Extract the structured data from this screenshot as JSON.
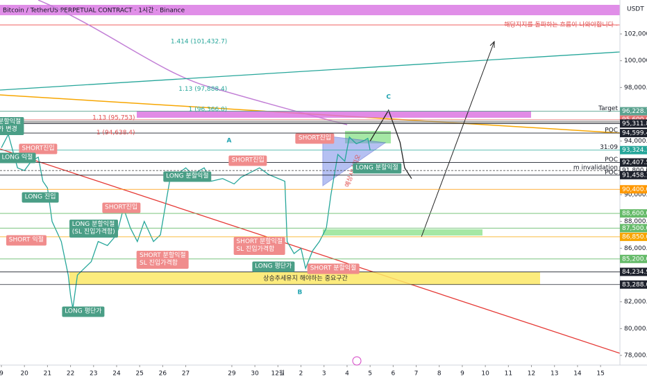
{
  "chart_data": {
    "type": "line",
    "title": "Bitcoin / TetherUS PERPETUAL CONTRACT · 1시간 · Binance",
    "currency": "USDT",
    "resistance_note": "해당지지를 돌파하는 흐름이 나와야합니다 -",
    "zone_label": "상승추세유지 해야하는 중요구간",
    "scenario_label": "예상시나리오",
    "xlim": [
      -0.06,
      26.84
    ],
    "ylim": [
      77276,
      104534
    ],
    "grid": false,
    "xticks": [
      {
        "value": 0,
        "label": "9"
      },
      {
        "value": 1,
        "label": "20"
      },
      {
        "value": 2,
        "label": "21"
      },
      {
        "value": 3,
        "label": "22"
      },
      {
        "value": 4,
        "label": "23"
      },
      {
        "value": 5,
        "label": "24"
      },
      {
        "value": 6,
        "label": "25"
      },
      {
        "value": 7,
        "label": "26"
      },
      {
        "value": 8,
        "label": "27"
      },
      {
        "value": 10,
        "label": "29"
      },
      {
        "value": 11,
        "label": "30"
      },
      {
        "value": 12,
        "label": "12월"
      },
      {
        "value": 13,
        "label": "2"
      },
      {
        "value": 14,
        "label": "3"
      },
      {
        "value": 15,
        "label": "4"
      },
      {
        "value": 16,
        "label": "5"
      },
      {
        "value": 17,
        "label": "6"
      },
      {
        "value": 18,
        "label": "7"
      },
      {
        "value": 19,
        "label": "8"
      },
      {
        "value": 20,
        "label": "9"
      },
      {
        "value": 21,
        "label": "10"
      },
      {
        "value": 22,
        "label": "11"
      },
      {
        "value": 23,
        "label": "12"
      },
      {
        "value": 24,
        "label": "13"
      },
      {
        "value": 25,
        "label": "14"
      },
      {
        "value": 26,
        "label": "15"
      }
    ],
    "yticks": [
      {
        "value": 102000,
        "label": "102,000.0"
      },
      {
        "value": 100000,
        "label": "100,000.0"
      },
      {
        "value": 98000,
        "label": "98,000.0"
      },
      {
        "value": 94000,
        "label": "94,000.0"
      },
      {
        "value": 90000,
        "label": "90,000.0"
      },
      {
        "value": 88000,
        "label": "88,000.0"
      },
      {
        "value": 86000,
        "label": "86,000.0"
      },
      {
        "value": 82000,
        "label": "82,000.0"
      },
      {
        "value": 80000,
        "label": "80,000.0"
      },
      {
        "value": 78000,
        "label": "78,000.0"
      }
    ],
    "series": [
      {
        "color": "#26a69a",
        "x": [
          0,
          0.3,
          0.7,
          1.0,
          1.3,
          1.6,
          1.8,
          2.0,
          2.2,
          2.6,
          2.9,
          3.0,
          3.1,
          3.3,
          3.6,
          3.9,
          4.2,
          4.6,
          5.0,
          5.3,
          5.6,
          5.9,
          6.2,
          6.6,
          6.9,
          7.1,
          7.3,
          7.6,
          8.0,
          8.3,
          8.8,
          9.1,
          9.6,
          10.1,
          10.4,
          11.2,
          11.6,
          12.3,
          12.4,
          12.7,
          13.0,
          13.2,
          13.5,
          13.8,
          14.1,
          14.3,
          14.6,
          14.9,
          15.1,
          15.4,
          15.7,
          15.9,
          16.0
        ],
        "values": [
          93500,
          94500,
          92000,
          91800,
          92500,
          92800,
          91000,
          90500,
          88000,
          86500,
          84000,
          82500,
          81500,
          84000,
          84500,
          85000,
          86500,
          86200,
          87000,
          89000,
          87500,
          86500,
          88000,
          86500,
          87000,
          89000,
          91000,
          91500,
          92000,
          91500,
          92000,
          91000,
          91200,
          90800,
          91300,
          92000,
          91500,
          91000,
          86500,
          85600,
          86000,
          84500,
          85800,
          86500,
          87500,
          90000,
          93000,
          92500,
          94300,
          93800,
          94000,
          94200,
          93324
        ]
      },
      {
        "color": "#222222",
        "x": [
          16.0,
          16.8,
          17.3,
          17.5,
          17.8
        ],
        "values": [
          94000,
          96300,
          93900,
          92000,
          91200
        ]
      }
    ],
    "price_tags": [
      {
        "value": 96228.7,
        "label": "96,228.7",
        "color": "#5aa28f",
        "note": "Target"
      },
      {
        "value": 95600,
        "label": "95,600.0",
        "color": "#e57373"
      },
      {
        "value": 95311.8,
        "label": "95,311.8",
        "color": "#1e222d"
      },
      {
        "value": 94599.4,
        "label": "94,599.4",
        "color": "#1e222d",
        "note": "POC"
      },
      {
        "value": 93324.1,
        "label": "93,324.1",
        "color": "#26a69a",
        "note": "31:09"
      },
      {
        "value": 92407.5,
        "label": "92,407.5",
        "color": "#1e222d",
        "note": "POC"
      },
      {
        "value": 91800,
        "label": "91,800.0",
        "color": "#ffffff",
        "note": "m invalidation"
      },
      {
        "value": 91458.1,
        "label": "91,458.1",
        "color": "#1e222d",
        "note": "POC"
      },
      {
        "value": 90400,
        "label": "90,400.0",
        "color": "#ff9800"
      },
      {
        "value": 88600,
        "label": "88,600.0",
        "color": "#66bb6a"
      },
      {
        "value": 87500,
        "label": "87,500.0",
        "color": "#66bb6a"
      },
      {
        "value": 86850,
        "label": "86,850.0",
        "color": "#f7a600"
      },
      {
        "value": 85200,
        "label": "85,200.0",
        "color": "#66bb6a"
      },
      {
        "value": 84234.9,
        "label": "84,234.9",
        "color": "#1e222d"
      },
      {
        "value": 83288,
        "label": "83,288.0",
        "color": "#1e222d"
      }
    ],
    "fib_labels": [
      {
        "text": "1.414 (101,432.7)",
        "x": 9.8,
        "y": 101432.7,
        "color": "#26a69a"
      },
      {
        "text": "1.13 (97,888.4)",
        "x": 9.8,
        "y": 97888.4,
        "color": "#26a69a"
      },
      {
        "text": "1 (96,366.0)",
        "x": 9.8,
        "y": 96366.0,
        "color": "#26a69a"
      },
      {
        "text": "1.13 (95,753)",
        "x": 5.8,
        "y": 95753,
        "color": "#e05050"
      },
      {
        "text": "1 (94,638.4)",
        "x": 5.8,
        "y": 94638.4,
        "color": "#e05050"
      }
    ],
    "wave_labels": [
      {
        "text": "A",
        "x": 9.88,
        "y": 94035
      },
      {
        "text": "B",
        "x": 12.95,
        "y": 82710
      },
      {
        "text": "C",
        "x": 16.8,
        "y": 97294
      }
    ],
    "callouts": [
      {
        "text": "분할익절\n가 변경",
        "kind": "long",
        "x": 0.35,
        "y": 95100
      },
      {
        "text": "SHORT진입",
        "kind": "short",
        "x": 1.6,
        "y": 93414
      },
      {
        "text": "LONG 익절",
        "kind": "long",
        "x": 0.69,
        "y": 92742
      },
      {
        "text": "LONG 진입",
        "kind": "long",
        "x": 1.69,
        "y": 89794
      },
      {
        "text": "SHORT 익절",
        "kind": "short",
        "x": 1.08,
        "y": 86587
      },
      {
        "text": "LONG 분할익절\n(SL 진입가격함)",
        "kind": "long",
        "x": 4.0,
        "y": 87467
      },
      {
        "text": "SHORT진입",
        "kind": "short",
        "x": 5.2,
        "y": 89019
      },
      {
        "text": "LONG 평단가",
        "kind": "long",
        "x": 3.55,
        "y": 81260
      },
      {
        "text": "SHORT 분할익절\nSL 진입가격함",
        "kind": "short",
        "x": 7.0,
        "y": 85139
      },
      {
        "text": "LONG 분할익절",
        "kind": "long",
        "x": 8.07,
        "y": 91346
      },
      {
        "text": "SHORT진입",
        "kind": "short",
        "x": 10.7,
        "y": 92535
      },
      {
        "text": "SHORT 분할익절\nSL 진입가격함",
        "kind": "short",
        "x": 11.2,
        "y": 86174
      },
      {
        "text": "LONG 평단가",
        "kind": "long",
        "x": 11.8,
        "y": 84622
      },
      {
        "text": "SHORT 분할익절",
        "kind": "short",
        "x": 14.4,
        "y": 84467
      },
      {
        "text": "SHORT진입",
        "kind": "short",
        "x": 13.6,
        "y": 94190
      },
      {
        "text": "LONG 분할익절",
        "kind": "long",
        "x": 16.3,
        "y": 91966
      }
    ]
  }
}
